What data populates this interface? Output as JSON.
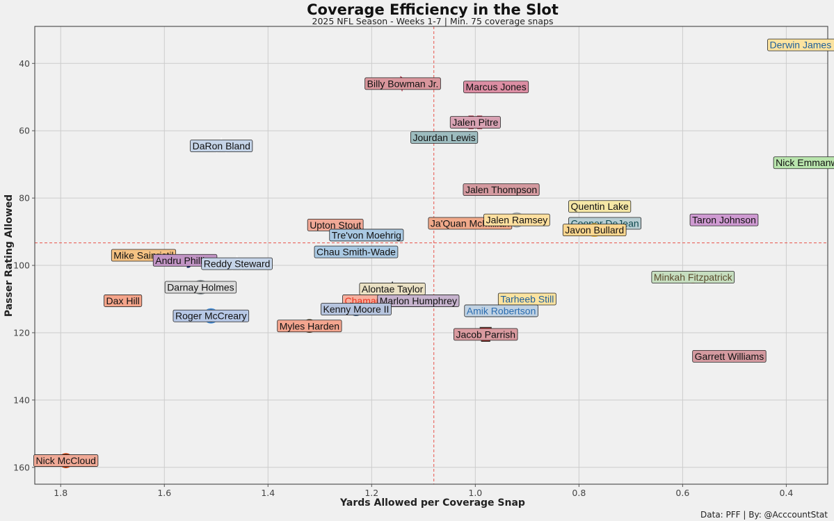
{
  "chart_data": {
    "type": "scatter",
    "title": "Coverage Efficiency in the Slot",
    "subtitle": "2025 NFL Season - Weeks 1-7 | Min. 75 coverage snaps",
    "xlabel": "Yards Allowed per Coverage Snap",
    "ylabel": "Passer Rating Allowed",
    "credit": "Data: PFF | By: @AcccountStat",
    "xlim": [
      1.85,
      0.32
    ],
    "ylim": [
      165,
      29
    ],
    "x_reversed": true,
    "y_reversed": true,
    "xticks": [
      1.8,
      1.6,
      1.4,
      1.2,
      1.0,
      0.8,
      0.6,
      0.4
    ],
    "xtick_labels": [
      "1.8",
      "1.6",
      "1.4",
      "1.2",
      "1.0",
      "0.8",
      "0.6",
      "0.4"
    ],
    "yticks": [
      40,
      60,
      80,
      100,
      120,
      140,
      160
    ],
    "ytick_labels": [
      "40",
      "60",
      "80",
      "100",
      "120",
      "140",
      "160"
    ],
    "grid": true,
    "reference_lines": {
      "x_mean": 1.08,
      "y_mean": 93.3
    },
    "points": [
      {
        "name": "Derwin James Jr.",
        "team": "LAC",
        "x": 0.36,
        "y": 34.5,
        "fill": "#fbe3a0",
        "text": "#1f5f9a",
        "logo": "lac"
      },
      {
        "name": "Billy Bowman Jr.",
        "team": "ATL",
        "x": 1.14,
        "y": 46.0,
        "fill": "#d9969c",
        "text": "#111111",
        "logo": "atl"
      },
      {
        "name": "Marcus Jones",
        "team": "NE",
        "x": 0.96,
        "y": 47.0,
        "fill": "#dc8ea4",
        "text": "#111111",
        "logo": "ne"
      },
      {
        "name": "Jalen Pitre",
        "team": "HOU",
        "x": 1.0,
        "y": 57.5,
        "fill": "#d8a2b3",
        "text": "#111111",
        "logo": "hou"
      },
      {
        "name": "Jourdan Lewis",
        "team": "JAX",
        "x": 1.06,
        "y": 62.0,
        "fill": "#9dbcbf",
        "text": "#111111",
        "logo": "jax"
      },
      {
        "name": "DaRon Bland",
        "team": "DAL",
        "x": 1.49,
        "y": 64.5,
        "fill": "#c5d4e8",
        "text": "#111111",
        "logo": "dal"
      },
      {
        "name": "Nick Emmanwori",
        "team": "SEA",
        "x": 0.35,
        "y": 69.5,
        "fill": "#b9e5ad",
        "text": "#111111",
        "logo": "sea"
      },
      {
        "name": "Jalen Thompson",
        "team": "ARI",
        "x": 0.95,
        "y": 77.5,
        "fill": "#d49aa0",
        "text": "#111111",
        "logo": "ari"
      },
      {
        "name": "Quentin Lake",
        "team": "LAR",
        "x": 0.76,
        "y": 82.5,
        "fill": "#f5e7a6",
        "text": "#111111",
        "logo": "lar"
      },
      {
        "name": "Ja'Quan McMillian",
        "team": "DEN",
        "x": 1.01,
        "y": 87.5,
        "fill": "#f0a98a",
        "text": "#111111",
        "logo": "den"
      },
      {
        "name": "Jalen Ramsey",
        "team": "PIT",
        "x": 0.92,
        "y": 86.5,
        "fill": "#fde0a0",
        "text": "#111111",
        "logo": "pit"
      },
      {
        "name": "Cooper DeJean",
        "team": "PHI",
        "x": 0.75,
        "y": 87.5,
        "fill": "#b8ced3",
        "text": "#0f4a4f",
        "logo": "phi"
      },
      {
        "name": "Taron Johnson",
        "team": "BUF",
        "x": 0.52,
        "y": 86.5,
        "fill": "#cf9ad2",
        "text": "#111111",
        "logo": "buf"
      },
      {
        "name": "Upton Stout",
        "team": "SF",
        "x": 1.27,
        "y": 88.0,
        "fill": "#f0a896",
        "text": "#111111",
        "logo": "sf"
      },
      {
        "name": "Tre'von Moehrig",
        "team": "CAR",
        "x": 1.21,
        "y": 91.0,
        "fill": "#aac9e3",
        "text": "#111111",
        "logo": "car"
      },
      {
        "name": "Javon Bullard",
        "team": "GB",
        "x": 0.77,
        "y": 89.5,
        "fill": "#fbd68f",
        "text": "#111111",
        "logo": "gb"
      },
      {
        "name": "Mike Sainristil",
        "team": "WAS",
        "x": 1.64,
        "y": 97.0,
        "fill": "#f5c283",
        "text": "#111111",
        "logo": "was"
      },
      {
        "name": "Andru Phillips",
        "team": "NYG",
        "x": 1.56,
        "y": 98.5,
        "fill": "#c194c4",
        "text": "#111111",
        "logo": "nyg"
      },
      {
        "name": "Chau Smith-Wade",
        "team": "CAR",
        "x": 1.23,
        "y": 96.0,
        "fill": "#aac9e3",
        "text": "#111111",
        "logo": "car"
      },
      {
        "name": "Reddy Steward",
        "team": "DAL",
        "x": 1.46,
        "y": 99.5,
        "fill": "#c5d4e8",
        "text": "#111111",
        "logo": "dal"
      },
      {
        "name": "Minkah Fitzpatrick",
        "team": "MIA",
        "x": 0.58,
        "y": 103.5,
        "fill": "#c6dec0",
        "text": "#5a4a2b",
        "logo": "mia"
      },
      {
        "name": "Alontae Taylor",
        "team": "NO",
        "x": 1.16,
        "y": 107.0,
        "fill": "#eae1c4",
        "text": "#111111",
        "logo": "no"
      },
      {
        "name": "Darnay Holmes",
        "team": "LV",
        "x": 1.53,
        "y": 106.5,
        "fill": "#dddddd",
        "text": "#111111",
        "logo": "lv"
      },
      {
        "name": "Dax Hill",
        "team": "CIN",
        "x": 1.68,
        "y": 110.5,
        "fill": "#f4a48a",
        "text": "#111111",
        "logo": "cin"
      },
      {
        "name": "Chamarri Conner",
        "team": "KC",
        "x": 1.18,
        "y": 110.5,
        "fill": "#f7b09f",
        "text": "#e8311d",
        "logo": "kc"
      },
      {
        "name": "Tarheeb Still",
        "team": "LAC",
        "x": 0.9,
        "y": 110.0,
        "fill": "#fbe3a0",
        "text": "#1f5f9a",
        "logo": "lac"
      },
      {
        "name": "Marlon Humphrey",
        "team": "BAL",
        "x": 1.11,
        "y": 110.5,
        "fill": "#c6b3cd",
        "text": "#111111",
        "logo": "bal"
      },
      {
        "name": "Amik Robertson",
        "team": "DET",
        "x": 0.95,
        "y": 113.5,
        "fill": "#c0d2e3",
        "text": "#2a6cb0",
        "logo": "det"
      },
      {
        "name": "Roger McCreary",
        "team": "TEN",
        "x": 1.51,
        "y": 115.0,
        "fill": "#b7c8e6",
        "text": "#111111",
        "logo": "ten"
      },
      {
        "name": "Kenny Moore II",
        "team": "IND",
        "x": 1.23,
        "y": 113.0,
        "fill": "#b6c4de",
        "text": "#111111",
        "logo": "ind"
      },
      {
        "name": "Myles Harden",
        "team": "CLE",
        "x": 1.32,
        "y": 118.0,
        "fill": "#f3a58f",
        "text": "#111111",
        "logo": "cle"
      },
      {
        "name": "Jacob Parrish",
        "team": "TB",
        "x": 0.98,
        "y": 120.5,
        "fill": "#d99a9f",
        "text": "#111111",
        "logo": "tb"
      },
      {
        "name": "Garrett Williams",
        "team": "ARI",
        "x": 0.51,
        "y": 127.0,
        "fill": "#d49aa0",
        "text": "#111111",
        "logo": "ari"
      },
      {
        "name": "Nick McCloud",
        "team": "CHI",
        "x": 1.79,
        "y": 158.0,
        "fill": "#f0a996",
        "text": "#111111",
        "logo": "chi"
      }
    ]
  }
}
